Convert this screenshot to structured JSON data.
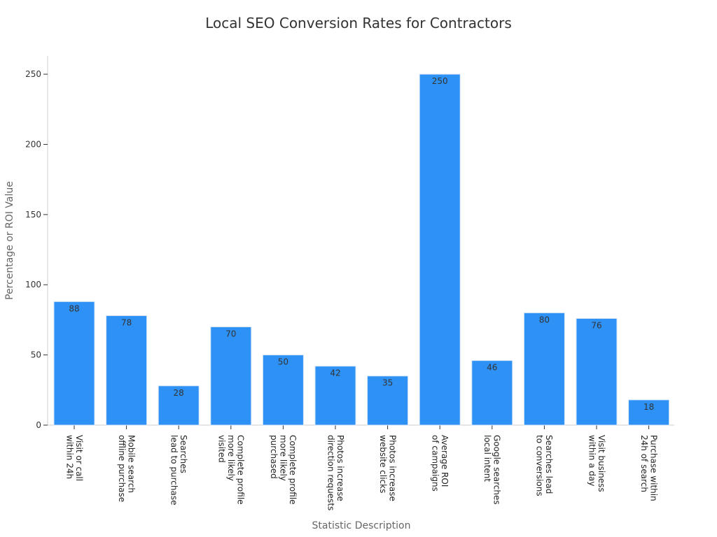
{
  "chart_data": {
    "type": "bar",
    "title": "Local SEO Conversion Rates for Contractors",
    "xlabel": "Statistic Description",
    "ylabel": "Percentage or ROI Value",
    "ylim": [
      0,
      263
    ],
    "yticks": [
      0,
      50,
      100,
      150,
      200,
      250
    ],
    "grid": false,
    "bar_color": "#2d91f6",
    "categories": [
      [
        "Visit or call",
        "within 24h"
      ],
      [
        "Mobile search",
        "offline purchase"
      ],
      [
        "Searches",
        "lead to purchase"
      ],
      [
        "Complete profile",
        "more likely",
        "visited"
      ],
      [
        "Complete profile",
        "more likely",
        "purchased"
      ],
      [
        "Photos increase",
        "direction requests"
      ],
      [
        "Photos increase",
        "website clicks"
      ],
      [
        "Average ROI",
        "of campaigns"
      ],
      [
        "Google searches",
        "local intent"
      ],
      [
        "Searches lead",
        "to conversions"
      ],
      [
        "Visit business",
        "within a day"
      ],
      [
        "Purchase within",
        "24h of search"
      ]
    ],
    "values": [
      88,
      78,
      28,
      70,
      50,
      42,
      35,
      250,
      46,
      80,
      76,
      18
    ]
  }
}
